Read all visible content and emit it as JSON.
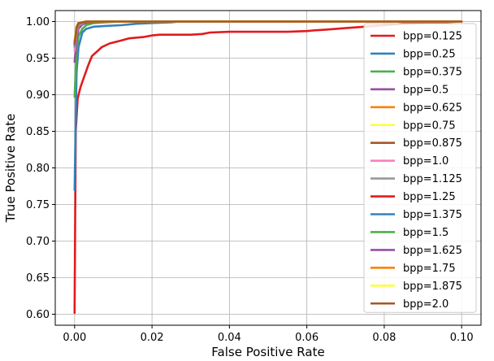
{
  "chart_data": {
    "type": "line",
    "title": "",
    "xlabel": "False Positive Rate",
    "ylabel": "True Positive Rate",
    "xlim": [
      -0.005,
      0.105
    ],
    "ylim": [
      0.585,
      1.015
    ],
    "xticks": [
      0.0,
      0.02,
      0.04,
      0.06,
      0.08,
      0.1
    ],
    "xtick_labels": [
      "0.00",
      "0.02",
      "0.04",
      "0.06",
      "0.08",
      "0.10"
    ],
    "yticks": [
      0.6,
      0.65,
      0.7,
      0.75,
      0.8,
      0.85,
      0.9,
      0.95,
      1.0
    ],
    "ytick_labels": [
      "0.60",
      "0.65",
      "0.70",
      "0.75",
      "0.80",
      "0.85",
      "0.90",
      "0.95",
      "1.00"
    ],
    "grid": true,
    "legend_position": "right",
    "series": [
      {
        "name": "bpp=0.125",
        "color": "#e31a1c",
        "x": [
          0.0,
          0.0003,
          0.0008,
          0.0015,
          0.0025,
          0.0035,
          0.0045,
          0.006,
          0.007,
          0.009,
          0.012,
          0.014,
          0.016,
          0.018,
          0.02,
          0.022,
          0.025,
          0.03,
          0.033,
          0.035,
          0.04,
          0.045,
          0.05,
          0.055,
          0.06,
          0.062,
          0.065,
          0.07,
          0.075,
          0.08,
          0.085,
          0.09,
          0.095,
          0.1
        ],
        "y": [
          0.602,
          0.85,
          0.895,
          0.91,
          0.925,
          0.94,
          0.953,
          0.96,
          0.965,
          0.97,
          0.974,
          0.977,
          0.978,
          0.979,
          0.981,
          0.982,
          0.982,
          0.982,
          0.983,
          0.985,
          0.986,
          0.986,
          0.986,
          0.986,
          0.987,
          0.988,
          0.989,
          0.991,
          0.993,
          0.995,
          0.997,
          0.998,
          0.999,
          1.0
        ]
      },
      {
        "name": "bpp=0.25",
        "color": "#3182bd",
        "x": [
          0.0,
          0.0005,
          0.001,
          0.002,
          0.003,
          0.005,
          0.008,
          0.012,
          0.016,
          0.02,
          0.025,
          0.027,
          0.1
        ],
        "y": [
          0.77,
          0.93,
          0.965,
          0.985,
          0.99,
          0.993,
          0.994,
          0.995,
          0.997,
          0.998,
          0.999,
          1.0,
          1.0
        ]
      },
      {
        "name": "bpp=0.375",
        "color": "#4daf4a",
        "x": [
          0.0,
          0.0005,
          0.001,
          0.002,
          0.003,
          0.005,
          0.008,
          0.012,
          0.1
        ],
        "y": [
          0.897,
          0.96,
          0.98,
          0.99,
          0.995,
          0.998,
          0.999,
          1.0,
          1.0
        ]
      },
      {
        "name": "bpp=0.5",
        "color": "#984ea3",
        "x": [
          0.0,
          0.0005,
          0.001,
          0.002,
          0.004,
          0.1
        ],
        "y": [
          0.945,
          0.975,
          0.99,
          0.996,
          1.0,
          1.0
        ]
      },
      {
        "name": "bpp=0.625",
        "color": "#ff7f00",
        "x": [
          0.0,
          0.0005,
          0.001,
          0.003,
          0.1
        ],
        "y": [
          0.965,
          0.985,
          0.995,
          1.0,
          1.0
        ]
      },
      {
        "name": "bpp=0.75",
        "color": "#ffff33",
        "x": [
          0.0,
          0.0005,
          0.001,
          0.003,
          0.1
        ],
        "y": [
          0.97,
          0.99,
          0.997,
          1.0,
          1.0
        ]
      },
      {
        "name": "bpp=0.875",
        "color": "#a65628",
        "x": [
          0.0,
          0.0005,
          0.001,
          0.008,
          0.1
        ],
        "y": [
          0.975,
          0.992,
          0.998,
          1.0,
          1.0
        ]
      },
      {
        "name": "bpp=1.0",
        "color": "#f781bf",
        "x": [
          0.0,
          0.0005,
          0.001,
          0.003,
          0.1
        ],
        "y": [
          0.96,
          0.985,
          0.995,
          1.0,
          1.0
        ]
      },
      {
        "name": "bpp=1.125",
        "color": "#999999",
        "x": [
          0.0,
          0.0005,
          0.001,
          0.003,
          0.1
        ],
        "y": [
          0.965,
          0.988,
          0.996,
          1.0,
          1.0
        ]
      },
      {
        "name": "bpp=1.25",
        "color": "#e31a1c",
        "x": [
          0.0,
          0.0005,
          0.001,
          0.003,
          0.1
        ],
        "y": [
          0.97,
          0.99,
          0.997,
          1.0,
          1.0
        ]
      },
      {
        "name": "bpp=1.375",
        "color": "#3182bd",
        "x": [
          0.0,
          0.0005,
          0.001,
          0.003,
          0.1
        ],
        "y": [
          0.968,
          0.99,
          0.997,
          1.0,
          1.0
        ]
      },
      {
        "name": "bpp=1.5",
        "color": "#4daf4a",
        "x": [
          0.0,
          0.0005,
          0.001,
          0.003,
          0.1
        ],
        "y": [
          0.97,
          0.99,
          0.997,
          1.0,
          1.0
        ]
      },
      {
        "name": "bpp=1.625",
        "color": "#984ea3",
        "x": [
          0.0,
          0.0005,
          0.001,
          0.003,
          0.1
        ],
        "y": [
          0.972,
          0.992,
          0.998,
          1.0,
          1.0
        ]
      },
      {
        "name": "bpp=1.75",
        "color": "#ff7f00",
        "x": [
          0.0,
          0.0005,
          0.001,
          0.003,
          0.1
        ],
        "y": [
          0.974,
          0.993,
          0.998,
          1.0,
          1.0
        ]
      },
      {
        "name": "bpp=1.875",
        "color": "#ffff33",
        "x": [
          0.0,
          0.0005,
          0.001,
          0.003,
          0.1
        ],
        "y": [
          0.975,
          0.994,
          0.999,
          1.0,
          1.0
        ]
      },
      {
        "name": "bpp=2.0",
        "color": "#a65628",
        "x": [
          0.0,
          0.0005,
          0.001,
          0.003,
          0.1
        ],
        "y": [
          0.97,
          0.992,
          0.998,
          1.0,
          1.0
        ]
      }
    ]
  }
}
